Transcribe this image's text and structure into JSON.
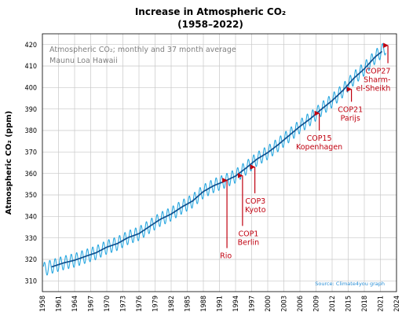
{
  "chart_data": {
    "type": "line",
    "title": "Increase in Atmospheric CO₂",
    "subtitle": "(1958–2022)",
    "ylabel": "Atmospheric CO₂ (ppm)",
    "xlabel": "",
    "xlim": [
      1958,
      2024
    ],
    "ylim": [
      305,
      425
    ],
    "xticks": [
      1958,
      1961,
      1964,
      1967,
      1970,
      1973,
      1976,
      1979,
      1982,
      1985,
      1988,
      1991,
      1994,
      1997,
      2000,
      2003,
      2006,
      2009,
      2012,
      2015,
      2018,
      2021,
      2024
    ],
    "yticks": [
      310,
      320,
      330,
      340,
      350,
      360,
      370,
      380,
      390,
      400,
      410,
      420
    ],
    "grid": true,
    "notes": [
      "Atmospheric CO₂; monthly and 37 month average",
      "Maunu Loa Hawaii"
    ],
    "source": "Source: Climate4you graph",
    "seasonal_amplitude_ppm": 3.2,
    "series": [
      {
        "name": "monthly",
        "color": "#2aa8e0",
        "x": [
          1958.2,
          1960,
          1962,
          1964,
          1966,
          1968,
          1970,
          1972,
          1974,
          1976,
          1978,
          1980,
          1982,
          1984,
          1986,
          1988,
          1990,
          1992,
          1994,
          1996,
          1998,
          2000,
          2002,
          2004,
          2006,
          2008,
          2010,
          2012,
          2014,
          2016,
          2018,
          2020,
          2022
        ],
        "y": [
          315.3,
          316.9,
          318.4,
          319.6,
          321.4,
          323.1,
          325.7,
          327.4,
          330.2,
          332.0,
          335.4,
          338.7,
          341.1,
          344.4,
          347.2,
          351.6,
          354.4,
          356.4,
          358.8,
          362.6,
          366.7,
          369.7,
          373.5,
          377.7,
          381.9,
          385.6,
          389.9,
          393.9,
          398.6,
          404.2,
          408.7,
          414.2,
          418.6
        ]
      },
      {
        "name": "37 month average",
        "color": "#10508f",
        "x": [
          1959.7,
          1962,
          1964,
          1966,
          1968,
          1970,
          1972,
          1974,
          1976,
          1978,
          1980,
          1982,
          1984,
          1986,
          1988,
          1990,
          1992,
          1994,
          1996,
          1998,
          2000,
          2002,
          2004,
          2006,
          2008,
          2010,
          2012,
          2014,
          2016,
          2018,
          2020,
          2021.3
        ],
        "y": [
          316.5,
          318.4,
          319.6,
          321.4,
          323.1,
          325.7,
          327.4,
          330.2,
          332.0,
          335.4,
          338.7,
          341.1,
          344.4,
          347.2,
          351.6,
          354.4,
          356.4,
          358.8,
          362.6,
          366.7,
          369.7,
          373.5,
          377.7,
          381.9,
          385.6,
          389.9,
          393.9,
          398.6,
          404.2,
          408.7,
          414.2,
          416.8
        ]
      }
    ],
    "annotations": [
      {
        "lines": [
          "Rio"
        ],
        "arrow_x": 1992.4,
        "arrow_y": 356.8,
        "text_x": 1992.2,
        "text_y": 320.5,
        "text_anchor": "middle"
      },
      {
        "lines": [
          "COP1",
          "Berlin"
        ],
        "arrow_x": 1995.3,
        "arrow_y": 359.0,
        "text_x": 1996.4,
        "text_y": 326.8,
        "text_anchor": "middle"
      },
      {
        "lines": [
          "COP3",
          "Kyoto"
        ],
        "arrow_x": 1997.6,
        "arrow_y": 363.0,
        "text_x": 1997.7,
        "text_y": 342.0,
        "text_anchor": "middle"
      },
      {
        "lines": [
          "COP15",
          "Kopenhagen"
        ],
        "arrow_x": 2009.6,
        "arrow_y": 388.0,
        "text_x": 2009.6,
        "text_y": 371.2,
        "text_anchor": "middle"
      },
      {
        "lines": [
          "COP21",
          "Parijs"
        ],
        "arrow_x": 2015.6,
        "arrow_y": 399.2,
        "text_x": 2015.4,
        "text_y": 384.6,
        "text_anchor": "middle"
      },
      {
        "lines": [
          "COP27",
          "Sharm-",
          "el-Sheikh"
        ],
        "arrow_x": 2022.4,
        "arrow_y": 419.6,
        "text_x": 2022.9,
        "text_y": 398.5,
        "text_anchor": "end"
      }
    ]
  }
}
